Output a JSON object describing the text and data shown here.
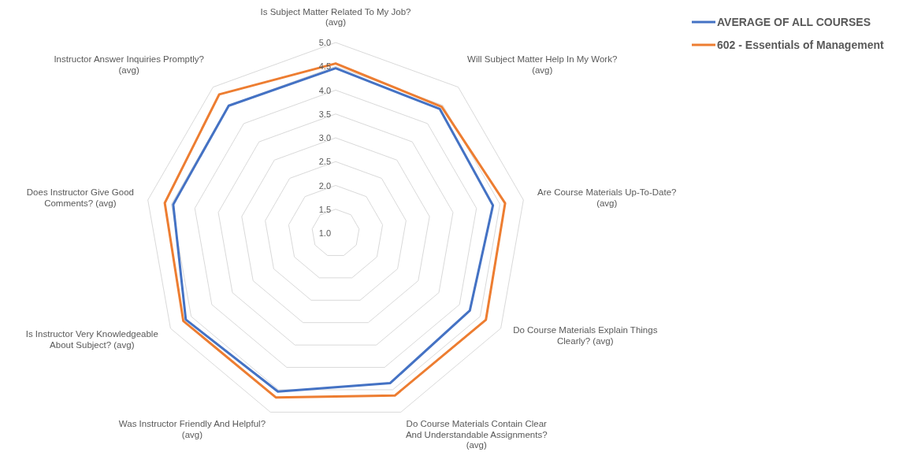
{
  "chart_data": {
    "type": "radar",
    "categories": [
      "Is Subject Matter Related To My Job? (avg)",
      "Will Subject Matter Help In My Work? (avg)",
      "Are Course Materials Up-To-Date? (avg)",
      "Do Course Materials Explain Things Clearly? (avg)",
      "Do Course Materials Contain Clear And Understandable Assignments? (avg)",
      "Was Instructor Friendly And Helpful? (avg)",
      "Is Instructor Very Knowledgeable About Subject? (avg)",
      "Does Instructor Give Good Comments? (avg)",
      "Instructor Answer Inquiries Promptly? (avg)"
    ],
    "series": [
      {
        "name": "AVERAGE OF ALL COURSES",
        "color": "#4472c4",
        "values": [
          4.46,
          4.4,
          4.35,
          4.25,
          4.35,
          4.54,
          4.63,
          4.46,
          4.49
        ]
      },
      {
        "name": "602 - Essentials of Management",
        "color": "#ed7d31",
        "values": [
          4.56,
          4.46,
          4.61,
          4.64,
          4.63,
          4.67,
          4.69,
          4.64,
          4.8
        ]
      }
    ],
    "ylim": [
      1,
      5
    ],
    "yticks": [
      {
        "value": 1,
        "label": "1.0"
      },
      1.5,
      {
        "value": 2,
        "label": "2.0"
      },
      2.5,
      {
        "value": 3,
        "label": "3.0"
      },
      3.5,
      {
        "value": 4,
        "label": "4.0"
      },
      4.5,
      {
        "value": 5,
        "label": "5.0"
      }
    ],
    "grid": true,
    "legend": "top right"
  }
}
